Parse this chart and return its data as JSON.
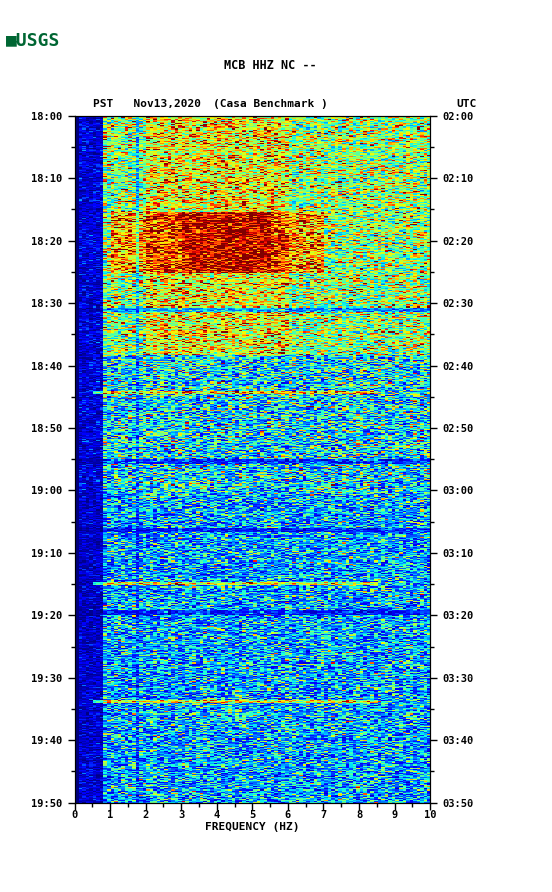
{
  "title_line1": "MCB HHZ NC --",
  "title_line2": "(Casa Benchmark )",
  "left_label": "PST   Nov13,2020",
  "right_label": "UTC",
  "xlabel": "FREQUENCY (HZ)",
  "freq_min": 0,
  "freq_max": 10,
  "pst_ticks": [
    "18:00",
    "18:10",
    "18:20",
    "18:30",
    "18:40",
    "18:50",
    "19:00",
    "19:10",
    "19:20",
    "19:30",
    "19:40",
    "19:50"
  ],
  "utc_ticks": [
    "02:00",
    "02:10",
    "02:20",
    "02:30",
    "02:40",
    "02:50",
    "03:00",
    "03:10",
    "03:20",
    "03:30",
    "03:40",
    "03:50"
  ],
  "background_color": "#ffffff",
  "cmap": "jet",
  "fig_width": 5.52,
  "fig_height": 8.92
}
